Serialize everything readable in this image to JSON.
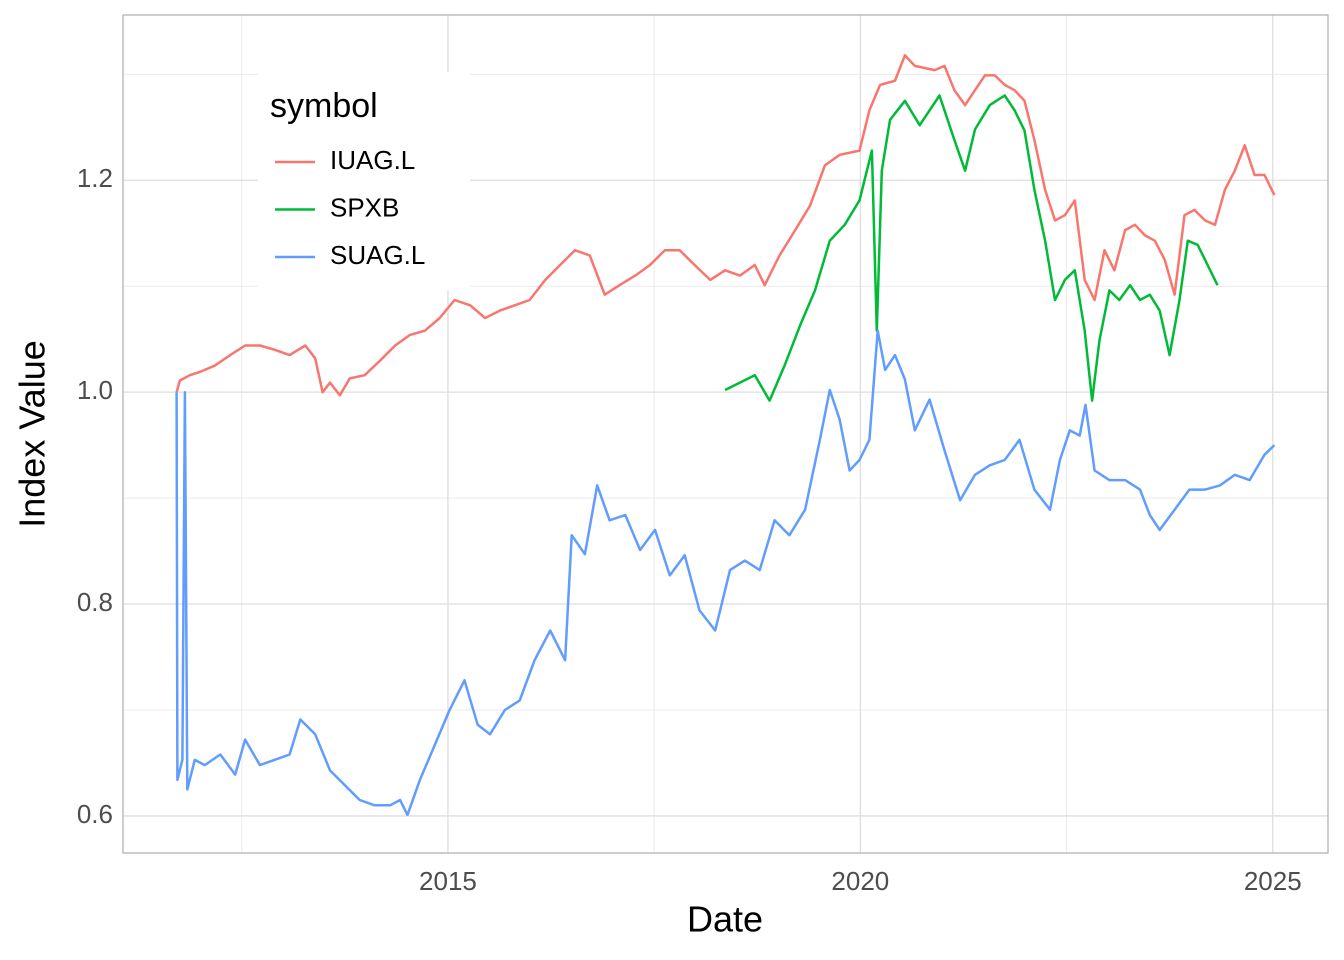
{
  "chart_data": {
    "type": "line",
    "x_label": "Date",
    "y_label": "Index Value",
    "xlim": [
      2011.06,
      2025.67
    ],
    "ylim": [
      0.565,
      1.356
    ],
    "xticks": [
      2015,
      2020,
      2025
    ],
    "yticks": [
      {
        "value": 0.6,
        "label": "0.6"
      },
      {
        "value": 0.8,
        "label": "0.8"
      },
      {
        "value": 1.0,
        "label": "1.0"
      },
      {
        "value": 1.2,
        "label": "1.2"
      }
    ],
    "x_minor_grid": [
      2012.5,
      2017.5,
      2022.5
    ],
    "y_minor_grid": [
      0.7,
      0.9,
      1.1,
      1.3
    ],
    "grid": true,
    "legend_title": "symbol",
    "legend_position": "top-left",
    "series": [
      {
        "name": "IUAG.L",
        "color": "#f8766d",
        "x": [
          2011.71,
          2011.75,
          2011.87,
          2011.99,
          2012.17,
          2012.36,
          2012.54,
          2012.72,
          2012.9,
          2013.08,
          2013.27,
          2013.39,
          2013.48,
          2013.57,
          2013.69,
          2013.81,
          2013.99,
          2014.18,
          2014.36,
          2014.54,
          2014.72,
          2014.9,
          2015.08,
          2015.27,
          2015.45,
          2015.63,
          2015.81,
          2015.99,
          2016.18,
          2016.36,
          2016.54,
          2016.72,
          2016.9,
          2017.08,
          2017.27,
          2017.45,
          2017.63,
          2017.81,
          2017.99,
          2018.18,
          2018.36,
          2018.54,
          2018.72,
          2018.84,
          2019.02,
          2019.21,
          2019.39,
          2019.57,
          2019.75,
          2019.99,
          2020.11,
          2020.24,
          2020.42,
          2020.54,
          2020.66,
          2020.9,
          2021.02,
          2021.14,
          2021.27,
          2021.39,
          2021.51,
          2021.63,
          2021.75,
          2021.87,
          2021.99,
          2022.11,
          2022.24,
          2022.36,
          2022.48,
          2022.6,
          2022.72,
          2022.84,
          2022.96,
          2023.08,
          2023.21,
          2023.33,
          2023.45,
          2023.57,
          2023.69,
          2023.81,
          2023.93,
          2024.05,
          2024.18,
          2024.3,
          2024.42,
          2024.54,
          2024.66,
          2024.78,
          2024.9,
          2025.02
        ],
        "values": [
          1.0,
          1.011,
          1.016,
          1.019,
          1.025,
          1.035,
          1.044,
          1.044,
          1.04,
          1.035,
          1.044,
          1.032,
          1.0,
          1.009,
          0.997,
          1.013,
          1.016,
          1.03,
          1.044,
          1.054,
          1.058,
          1.07,
          1.087,
          1.082,
          1.07,
          1.077,
          1.082,
          1.087,
          1.106,
          1.12,
          1.134,
          1.129,
          1.092,
          1.101,
          1.11,
          1.12,
          1.134,
          1.134,
          1.12,
          1.106,
          1.115,
          1.11,
          1.12,
          1.101,
          1.129,
          1.153,
          1.176,
          1.214,
          1.224,
          1.228,
          1.266,
          1.29,
          1.294,
          1.318,
          1.308,
          1.304,
          1.308,
          1.285,
          1.271,
          1.285,
          1.299,
          1.299,
          1.29,
          1.285,
          1.275,
          1.238,
          1.191,
          1.162,
          1.167,
          1.181,
          1.106,
          1.087,
          1.134,
          1.115,
          1.153,
          1.158,
          1.148,
          1.143,
          1.125,
          1.092,
          1.167,
          1.172,
          1.162,
          1.158,
          1.191,
          1.209,
          1.233,
          1.205,
          1.205,
          1.186
        ]
      },
      {
        "name": "SPXB",
        "color": "#00ba38",
        "x": [
          2018.36,
          2018.54,
          2018.72,
          2018.9,
          2019.08,
          2019.27,
          2019.45,
          2019.63,
          2019.81,
          2019.99,
          2020.14,
          2020.2,
          2020.26,
          2020.36,
          2020.54,
          2020.72,
          2020.96,
          2021.14,
          2021.27,
          2021.39,
          2021.57,
          2021.75,
          2021.87,
          2021.99,
          2022.11,
          2022.24,
          2022.36,
          2022.48,
          2022.6,
          2022.72,
          2022.81,
          2022.9,
          2023.02,
          2023.14,
          2023.27,
          2023.39,
          2023.51,
          2023.63,
          2023.75,
          2023.87,
          2023.97,
          2024.09,
          2024.21,
          2024.33
        ],
        "values": [
          1.002,
          1.009,
          1.016,
          0.992,
          1.025,
          1.063,
          1.096,
          1.143,
          1.158,
          1.181,
          1.228,
          1.058,
          1.209,
          1.257,
          1.275,
          1.252,
          1.28,
          1.238,
          1.209,
          1.248,
          1.271,
          1.28,
          1.266,
          1.247,
          1.191,
          1.143,
          1.087,
          1.106,
          1.115,
          1.058,
          0.992,
          1.049,
          1.096,
          1.087,
          1.101,
          1.087,
          1.092,
          1.077,
          1.035,
          1.087,
          1.143,
          1.139,
          1.12,
          1.101
        ]
      },
      {
        "name": "SUAG.L",
        "color": "#619cff",
        "x": [
          2011.71,
          2011.72,
          2011.78,
          2011.81,
          2011.84,
          2011.93,
          2012.05,
          2012.24,
          2012.42,
          2012.54,
          2012.72,
          2012.9,
          2013.08,
          2013.21,
          2013.39,
          2013.57,
          2013.75,
          2013.93,
          2014.11,
          2014.3,
          2014.42,
          2014.51,
          2014.66,
          2014.84,
          2015.02,
          2015.2,
          2015.36,
          2015.51,
          2015.69,
          2015.87,
          2016.05,
          2016.24,
          2016.42,
          2016.5,
          2016.66,
          2016.81,
          2016.96,
          2017.15,
          2017.33,
          2017.51,
          2017.69,
          2017.87,
          2018.05,
          2018.24,
          2018.42,
          2018.6,
          2018.78,
          2018.96,
          2019.14,
          2019.33,
          2019.51,
          2019.63,
          2019.75,
          2019.87,
          2019.99,
          2020.11,
          2020.21,
          2020.3,
          2020.42,
          2020.54,
          2020.66,
          2020.84,
          2021.02,
          2021.21,
          2021.39,
          2021.57,
          2021.75,
          2021.93,
          2022.11,
          2022.3,
          2022.42,
          2022.54,
          2022.66,
          2022.73,
          2022.84,
          2023.02,
          2023.21,
          2023.39,
          2023.51,
          2023.63,
          2023.81,
          2023.99,
          2024.18,
          2024.36,
          2024.54,
          2024.72,
          2024.9,
          2025.02
        ],
        "values": [
          1.0,
          0.634,
          0.653,
          1.0,
          0.625,
          0.653,
          0.648,
          0.658,
          0.639,
          0.672,
          0.648,
          0.653,
          0.658,
          0.691,
          0.677,
          0.643,
          0.629,
          0.615,
          0.61,
          0.61,
          0.615,
          0.601,
          0.634,
          0.667,
          0.7,
          0.728,
          0.686,
          0.677,
          0.7,
          0.709,
          0.747,
          0.775,
          0.747,
          0.865,
          0.847,
          0.912,
          0.879,
          0.884,
          0.851,
          0.87,
          0.827,
          0.846,
          0.794,
          0.775,
          0.832,
          0.841,
          0.832,
          0.879,
          0.865,
          0.889,
          0.955,
          1.002,
          0.974,
          0.926,
          0.936,
          0.955,
          1.058,
          1.021,
          1.035,
          1.012,
          0.964,
          0.993,
          0.945,
          0.898,
          0.922,
          0.931,
          0.936,
          0.955,
          0.908,
          0.889,
          0.936,
          0.964,
          0.959,
          0.988,
          0.926,
          0.917,
          0.917,
          0.908,
          0.884,
          0.87,
          0.889,
          0.908,
          0.908,
          0.912,
          0.922,
          0.917,
          0.941,
          0.95
        ]
      }
    ]
  }
}
